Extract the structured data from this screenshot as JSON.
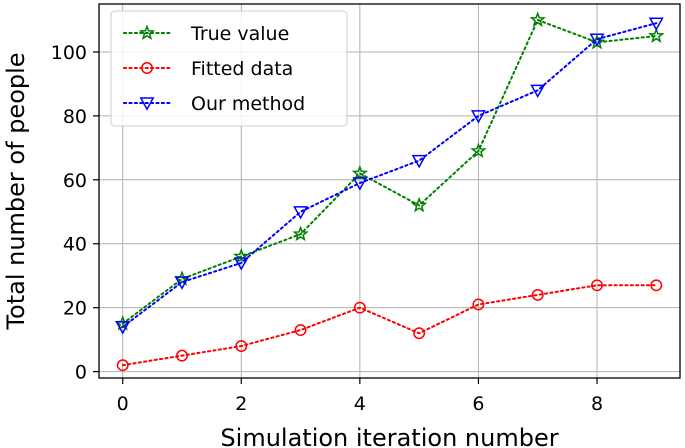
{
  "chart_data": {
    "type": "line",
    "xlabel": "Simulation iteration number",
    "ylabel": "Total number of people",
    "xlim": [
      -0.4,
      9.4
    ],
    "ylim": [
      -2,
      115
    ],
    "xticks": [
      0,
      2,
      4,
      6,
      8
    ],
    "yticks": [
      0,
      20,
      40,
      60,
      80,
      100
    ],
    "grid": true,
    "legend_position": "top-left",
    "x": [
      0,
      1,
      2,
      3,
      4,
      5,
      6,
      7,
      8,
      9
    ],
    "series": [
      {
        "name": "True value",
        "color": "#008000",
        "marker": "star",
        "values": [
          15,
          29,
          36,
          43,
          62,
          52,
          69,
          110,
          103,
          105
        ]
      },
      {
        "name": "Fitted data",
        "color": "#ff0000",
        "marker": "circle",
        "values": [
          2,
          5,
          8,
          13,
          20,
          12,
          21,
          24,
          27,
          27
        ]
      },
      {
        "name": "Our method",
        "color": "#0000ff",
        "marker": "triangle-down",
        "values": [
          14,
          28,
          34,
          50,
          59,
          66,
          80,
          88,
          104,
          109
        ]
      }
    ]
  }
}
